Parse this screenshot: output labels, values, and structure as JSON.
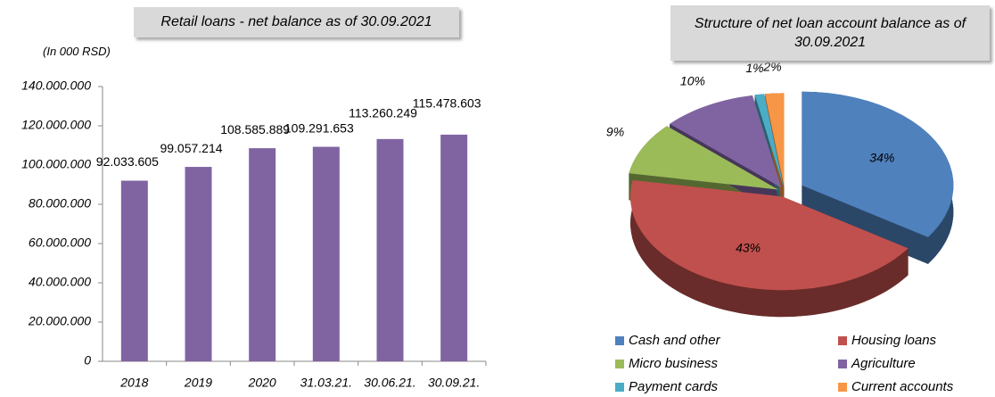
{
  "chart_data": [
    {
      "type": "bar",
      "title": "Retail loans - net balance as of 30.09.2021",
      "subtitle": "(In 000 RSD)",
      "categories": [
        "2018",
        "2019",
        "2020",
        "31.03.21.",
        "30.06.21.",
        "30.09.21."
      ],
      "values": [
        92033605,
        99057214,
        108585889,
        109291653,
        113260249,
        115478603
      ],
      "value_labels": [
        "92.033.605",
        "99.057.214",
        "108.585.889",
        "109.291.653",
        "113.260.249",
        "115.478.603"
      ],
      "color": "#8064a2",
      "ylim": [
        0,
        140000000
      ],
      "yticks": [
        {
          "value": 0,
          "label": "0"
        },
        {
          "value": 20000000,
          "label": "20.000.000"
        },
        {
          "value": 40000000,
          "label": "40.000.000"
        },
        {
          "value": 60000000,
          "label": "60.000.000"
        },
        {
          "value": 80000000,
          "label": "80.000.000"
        },
        {
          "value": 100000000,
          "label": "100.000.000"
        },
        {
          "value": 120000000,
          "label": "120.000.000"
        },
        {
          "value": 140000000,
          "label": "140.000.000"
        }
      ]
    },
    {
      "type": "pie",
      "title": "Structure of net loan account balance as of 30.09.2021",
      "categories": [
        "Cash and other",
        "Housing loans",
        "Micro business",
        "Agriculture",
        "Payment cards",
        "Current accounts"
      ],
      "values": [
        34,
        43,
        9,
        10,
        1,
        2
      ],
      "value_labels": [
        "34%",
        "43%",
        "9%",
        "10%",
        "1%",
        "2%"
      ],
      "colors": [
        "#4f81bd",
        "#c0504d",
        "#9bbb59",
        "#8064a2",
        "#4bacc6",
        "#f79646"
      ]
    }
  ]
}
